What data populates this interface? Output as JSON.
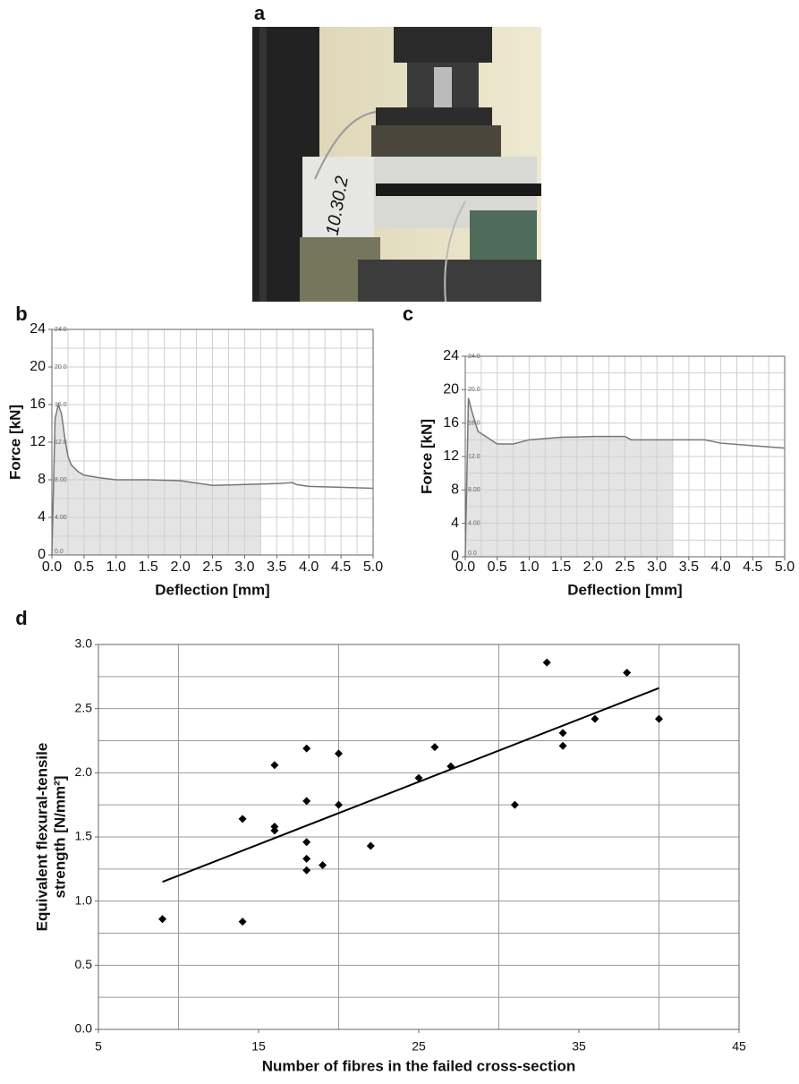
{
  "photo": {
    "panel_label": "a"
  },
  "chart_data": [
    {
      "type": "line",
      "panel_label": "b",
      "xlabel": "Deflection [mm]",
      "ylabel": "Force [kN]",
      "color": "#777777",
      "x": [
        0,
        0.05,
        0.1,
        0.15,
        0.2,
        0.25,
        0.3,
        0.4,
        0.5,
        0.75,
        1.0,
        1.5,
        2.0,
        2.5,
        3.0,
        3.5,
        3.75,
        3.8,
        4.0,
        4.5,
        5.0
      ],
      "values": [
        0,
        14.5,
        16,
        15,
        12.5,
        10.5,
        9.6,
        8.9,
        8.5,
        8.2,
        8.0,
        8.0,
        7.9,
        7.4,
        7.5,
        7.6,
        7.7,
        7.5,
        7.3,
        7.2,
        7.1
      ],
      "shaded_range": [
        0,
        3.25
      ],
      "xlim": [
        0,
        5
      ],
      "ylim": [
        0,
        24
      ],
      "xticks": [
        {
          "value": 0,
          "label": "0.0"
        },
        0.5,
        {
          "value": 1,
          "label": "1.0"
        },
        1.5,
        {
          "value": 2,
          "label": "2.0"
        },
        2.5,
        {
          "value": 3,
          "label": "3.0"
        },
        3.5,
        {
          "value": 4,
          "label": "4.0"
        },
        4.5,
        {
          "value": 5,
          "label": "5.0"
        }
      ],
      "yticks": [
        0,
        4,
        8,
        12,
        16,
        20,
        24
      ],
      "inner_yticks": [
        {
          "value": 0,
          "label": "0.0"
        },
        {
          "value": 4,
          "label": "4.00"
        },
        {
          "value": 8,
          "label": "8.00"
        },
        {
          "value": 12,
          "label": "12.0"
        },
        {
          "value": 16,
          "label": "16.0"
        },
        {
          "value": 20,
          "label": "20.0"
        },
        {
          "value": 24,
          "label": "24.0"
        }
      ],
      "xgrid": [
        0.25,
        0.5,
        0.75,
        1,
        1.25,
        1.5,
        1.75,
        2,
        2.25,
        2.5,
        2.75,
        3,
        3.25,
        3.5,
        3.75,
        4,
        4.25,
        4.5,
        4.75
      ],
      "ygrid": [
        2,
        4,
        6,
        8,
        10,
        12,
        14,
        16,
        18,
        20,
        22
      ]
    },
    {
      "type": "line",
      "panel_label": "c",
      "xlabel": "Deflection [mm]",
      "ylabel": "Force [kN]",
      "color": "#777777",
      "x": [
        0,
        0.05,
        0.1,
        0.2,
        0.3,
        0.5,
        0.75,
        1.0,
        1.5,
        2.0,
        2.5,
        2.6,
        3.0,
        3.5,
        3.75,
        4.0,
        4.5,
        5.0
      ],
      "values": [
        0,
        19,
        17.5,
        15,
        14.5,
        13.5,
        13.5,
        14,
        14.3,
        14.4,
        14.4,
        14.0,
        14.0,
        14.0,
        14.0,
        13.6,
        13.3,
        13.0
      ],
      "shaded_range": [
        0,
        3.25
      ],
      "xlim": [
        0,
        5
      ],
      "ylim": [
        0,
        24
      ],
      "xticks": [
        {
          "value": 0,
          "label": "0.0"
        },
        0.5,
        {
          "value": 1,
          "label": "1.0"
        },
        1.5,
        {
          "value": 2,
          "label": "2.0"
        },
        2.5,
        {
          "value": 3,
          "label": "3.0"
        },
        3.5,
        {
          "value": 4,
          "label": "4.0"
        },
        4.5,
        {
          "value": 5,
          "label": "5.0"
        }
      ],
      "yticks": [
        0,
        4,
        8,
        12,
        16,
        20,
        24
      ],
      "inner_yticks": [
        {
          "value": 0,
          "label": "0.0"
        },
        {
          "value": 4,
          "label": "4.00"
        },
        {
          "value": 8,
          "label": "8.00"
        },
        {
          "value": 12,
          "label": "12.0"
        },
        {
          "value": 16,
          "label": "16.0"
        },
        {
          "value": 20,
          "label": "20.0"
        },
        {
          "value": 24,
          "label": "24.0"
        }
      ],
      "xgrid": [
        0.25,
        0.5,
        0.75,
        1,
        1.25,
        1.5,
        1.75,
        2,
        2.25,
        2.5,
        2.75,
        3,
        3.25,
        3.5,
        3.75,
        4,
        4.25,
        4.5,
        4.75
      ],
      "ygrid": [
        2,
        4,
        6,
        8,
        10,
        12,
        14,
        16,
        18,
        20,
        22
      ]
    },
    {
      "type": "scatter",
      "panel_label": "d",
      "xlabel": "Number of fibres in the failed cross-section",
      "ylabel": [
        "Equivalent flexural-tensile",
        "strength [N/mm²]"
      ],
      "color": "#000000",
      "x": [
        9,
        14,
        14,
        16,
        16,
        16,
        18,
        18,
        18,
        18,
        18,
        19,
        20,
        20,
        22,
        25,
        26,
        27,
        31,
        33,
        34,
        34,
        36,
        38,
        40
      ],
      "values": [
        0.86,
        1.64,
        0.84,
        2.06,
        1.58,
        1.55,
        2.19,
        1.78,
        1.46,
        1.33,
        1.24,
        1.28,
        2.15,
        1.75,
        1.43,
        1.96,
        2.2,
        2.05,
        1.75,
        2.86,
        2.31,
        2.21,
        2.42,
        2.78,
        2.42
      ],
      "trend": {
        "x": [
          9,
          40
        ],
        "values": [
          1.15,
          2.66
        ],
        "color": "#000000"
      },
      "xlim": [
        5,
        45
      ],
      "ylim": [
        0,
        3
      ],
      "xticks": [
        5,
        15,
        25,
        35,
        45
      ],
      "yticks": [
        {
          "value": 0,
          "label": "0.0"
        },
        0.5,
        {
          "value": 1,
          "label": "1.0"
        },
        1.5,
        {
          "value": 2,
          "label": "2.0"
        },
        2.5,
        {
          "value": 3,
          "label": "3.0"
        }
      ],
      "xgrid": [
        10,
        20,
        30,
        40
      ],
      "ygrid": [
        0.25,
        0.5,
        0.75,
        1,
        1.25,
        1.5,
        1.75,
        2,
        2.25,
        2.5,
        2.75
      ]
    }
  ]
}
